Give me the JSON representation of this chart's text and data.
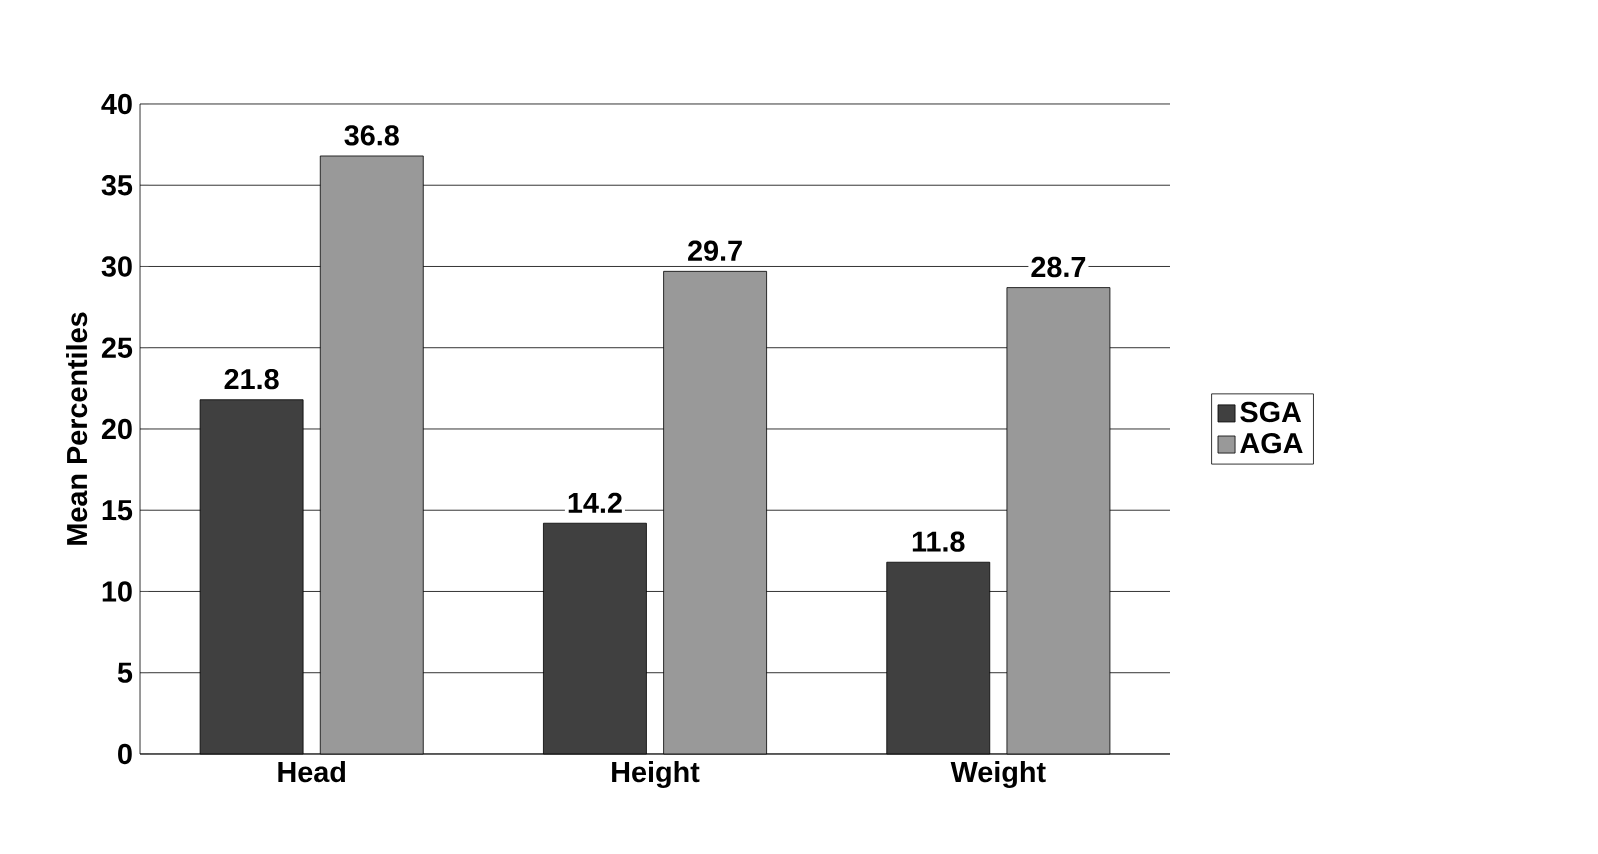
{
  "chart_data": {
    "type": "bar",
    "ylabel": "Mean Percentiles",
    "categories": [
      "Head",
      "Height",
      "Weight"
    ],
    "series": [
      {
        "name": "SGA",
        "color": "#404040",
        "values": [
          21.8,
          14.2,
          11.8
        ]
      },
      {
        "name": "AGA",
        "color": "#999999",
        "values": [
          36.8,
          29.7,
          28.7
        ]
      }
    ],
    "ylim": [
      0,
      40
    ],
    "yticks": [
      0,
      5,
      10,
      15,
      20,
      25,
      30,
      35,
      40
    ],
    "grid": "y",
    "legend": "right",
    "data_labels": true
  }
}
